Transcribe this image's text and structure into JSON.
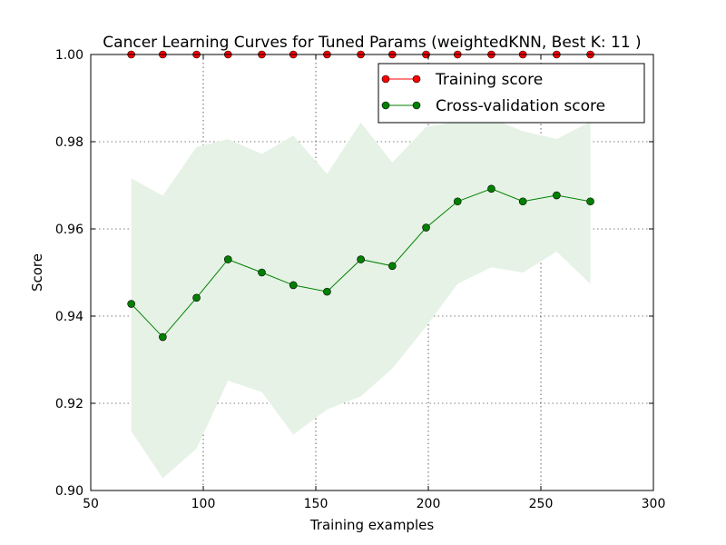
{
  "chart_data": {
    "type": "line",
    "title": "Cancer Learning Curves for Tuned Params (weightedKNN, Best K: 11 )",
    "xlabel": "Training examples",
    "ylabel": "Score",
    "xlim": [
      50,
      300
    ],
    "ylim": [
      0.9,
      1.0
    ],
    "xticks": [
      "50",
      "100",
      "150",
      "200",
      "250",
      "300"
    ],
    "yticks": [
      "0.90",
      "0.92",
      "0.94",
      "0.96",
      "0.98",
      "1.00"
    ],
    "grid": true,
    "legend_position": "upper right",
    "x": [
      68,
      82,
      97,
      111,
      126,
      140,
      155,
      170,
      184,
      199,
      213,
      228,
      242,
      257,
      272
    ],
    "series": [
      {
        "name": "Training score",
        "color": "#ff0000",
        "values": [
          1.0,
          1.0,
          1.0,
          1.0,
          1.0,
          1.0,
          1.0,
          1.0,
          1.0,
          1.0,
          1.0,
          1.0,
          1.0,
          1.0,
          1.0
        ]
      },
      {
        "name": "Cross-validation score",
        "color": "#008000",
        "values": [
          0.9428,
          0.9352,
          0.9442,
          0.953,
          0.95,
          0.9471,
          0.9456,
          0.953,
          0.9515,
          0.9603,
          0.9663,
          0.9692,
          0.9663,
          0.9677,
          0.9663
        ],
        "band_upper": [
          0.9716,
          0.9676,
          0.9788,
          0.9806,
          0.9772,
          0.9814,
          0.9726,
          0.9844,
          0.9752,
          0.9834,
          0.9846,
          0.9854,
          0.9824,
          0.9806,
          0.9846
        ],
        "band_lower": [
          0.9136,
          0.9028,
          0.9096,
          0.9252,
          0.9226,
          0.9128,
          0.9186,
          0.9216,
          0.928,
          0.9376,
          0.9474,
          0.9512,
          0.95,
          0.9548,
          0.9474
        ],
        "band_color": "#e5f2e5"
      }
    ]
  }
}
